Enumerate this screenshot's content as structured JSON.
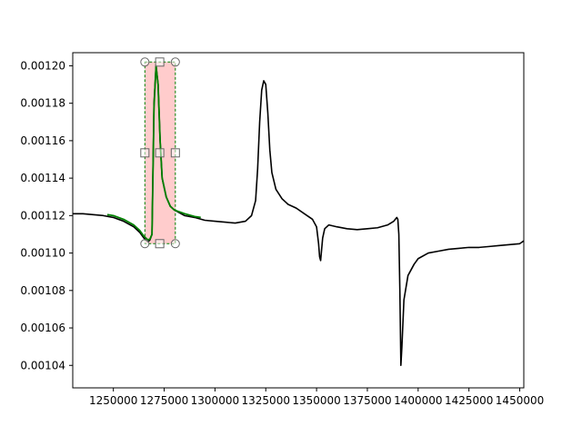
{
  "chart_data": {
    "type": "line",
    "title": "",
    "xlabel": "",
    "ylabel": "",
    "xlim": [
      1230000,
      1452000
    ],
    "ylim": [
      0.001028,
      0.001207
    ],
    "grid": false,
    "x_ticks": [
      {
        "value": 1250000,
        "label": "1250000"
      },
      {
        "value": 1275000,
        "label": "1275000"
      },
      {
        "value": 1300000,
        "label": "1300000"
      },
      {
        "value": 1325000,
        "label": "1325000"
      },
      {
        "value": 1350000,
        "label": "1350000"
      },
      {
        "value": 1375000,
        "label": "1375000"
      },
      {
        "value": 1400000,
        "label": "1400000"
      },
      {
        "value": 1425000,
        "label": "1425000"
      },
      {
        "value": 1450000,
        "label": "1450000"
      }
    ],
    "y_ticks": [
      {
        "value": 0.00104,
        "label": "0.00104"
      },
      {
        "value": 0.00106,
        "label": "0.00106"
      },
      {
        "value": 0.00108,
        "label": "0.00108"
      },
      {
        "value": 0.0011,
        "label": "0.00110"
      },
      {
        "value": 0.00112,
        "label": "0.00112"
      },
      {
        "value": 0.00114,
        "label": "0.00114"
      },
      {
        "value": 0.00116,
        "label": "0.00116"
      },
      {
        "value": 0.00118,
        "label": "0.00118"
      },
      {
        "value": 0.0012,
        "label": "0.00120"
      }
    ],
    "series": [
      {
        "color": "#000000",
        "x": [
          1230000,
          1235000,
          1240000,
          1245000,
          1250000,
          1255000,
          1260000,
          1263000,
          1265000,
          1267000,
          1268000,
          1269000,
          1270000,
          1271000,
          1272000,
          1273000,
          1274000,
          1276000,
          1278000,
          1280000,
          1285000,
          1290000,
          1295000,
          1300000,
          1305000,
          1310000,
          1315000,
          1318000,
          1320000,
          1321000,
          1322000,
          1323000,
          1324000,
          1325000,
          1326000,
          1327000,
          1328000,
          1330000,
          1333000,
          1336000,
          1340000,
          1344000,
          1348000,
          1350000,
          1351000,
          1351500,
          1352000,
          1352500,
          1353000,
          1354000,
          1356000,
          1360000,
          1365000,
          1370000,
          1375000,
          1380000,
          1385000,
          1388000,
          1389500,
          1390000,
          1390500,
          1391000,
          1391500,
          1392000,
          1393000,
          1395000,
          1398000,
          1400000,
          1405000,
          1410000,
          1415000,
          1420000,
          1425000,
          1430000,
          1435000,
          1440000,
          1445000,
          1450000,
          1452000
        ],
        "y": [
          0.001121,
          0.001121,
          0.0011205,
          0.00112,
          0.001119,
          0.001117,
          0.001114,
          0.001111,
          0.001108,
          0.001106,
          0.001107,
          0.00111,
          0.00118,
          0.0012,
          0.00119,
          0.00116,
          0.00114,
          0.00113,
          0.001125,
          0.001123,
          0.00112,
          0.001119,
          0.0011175,
          0.001117,
          0.0011165,
          0.001116,
          0.001117,
          0.00112,
          0.001128,
          0.001145,
          0.00117,
          0.001187,
          0.001192,
          0.00119,
          0.001175,
          0.001155,
          0.001143,
          0.001134,
          0.001129,
          0.001126,
          0.001124,
          0.001121,
          0.001118,
          0.001114,
          0.001105,
          0.001098,
          0.001096,
          0.001102,
          0.001108,
          0.001113,
          0.001115,
          0.001114,
          0.001113,
          0.0011125,
          0.001113,
          0.0011135,
          0.001115,
          0.001117,
          0.001119,
          0.001118,
          0.00111,
          0.00108,
          0.00104,
          0.00105,
          0.001075,
          0.001088,
          0.001094,
          0.001097,
          0.0011,
          0.001101,
          0.001102,
          0.0011025,
          0.001103,
          0.001103,
          0.0011035,
          0.001104,
          0.0011045,
          0.001105,
          0.0011065
        ]
      },
      {
        "color": "#008000",
        "x": [
          1247000,
          1250000,
          1255000,
          1260000,
          1263000,
          1265000,
          1267000,
          1268000,
          1269000,
          1270000,
          1271000,
          1272000,
          1273000,
          1274000,
          1276000,
          1278000,
          1280000,
          1285000,
          1290000,
          1293000
        ],
        "y": [
          0.0011205,
          0.00112,
          0.001118,
          0.001115,
          0.001112,
          0.001109,
          0.001107,
          0.0011075,
          0.00111,
          0.001178,
          0.0012,
          0.00119,
          0.00116,
          0.00114,
          0.00113,
          0.001125,
          0.001123,
          0.001121,
          0.0011195,
          0.001119
        ]
      }
    ],
    "selection": {
      "x_range": [
        1265500,
        1280500
      ],
      "y_range": [
        0.001105,
        0.001202
      ],
      "fill": "#ffcccc",
      "edge": "#008000",
      "handle_x": 1272800
    }
  }
}
